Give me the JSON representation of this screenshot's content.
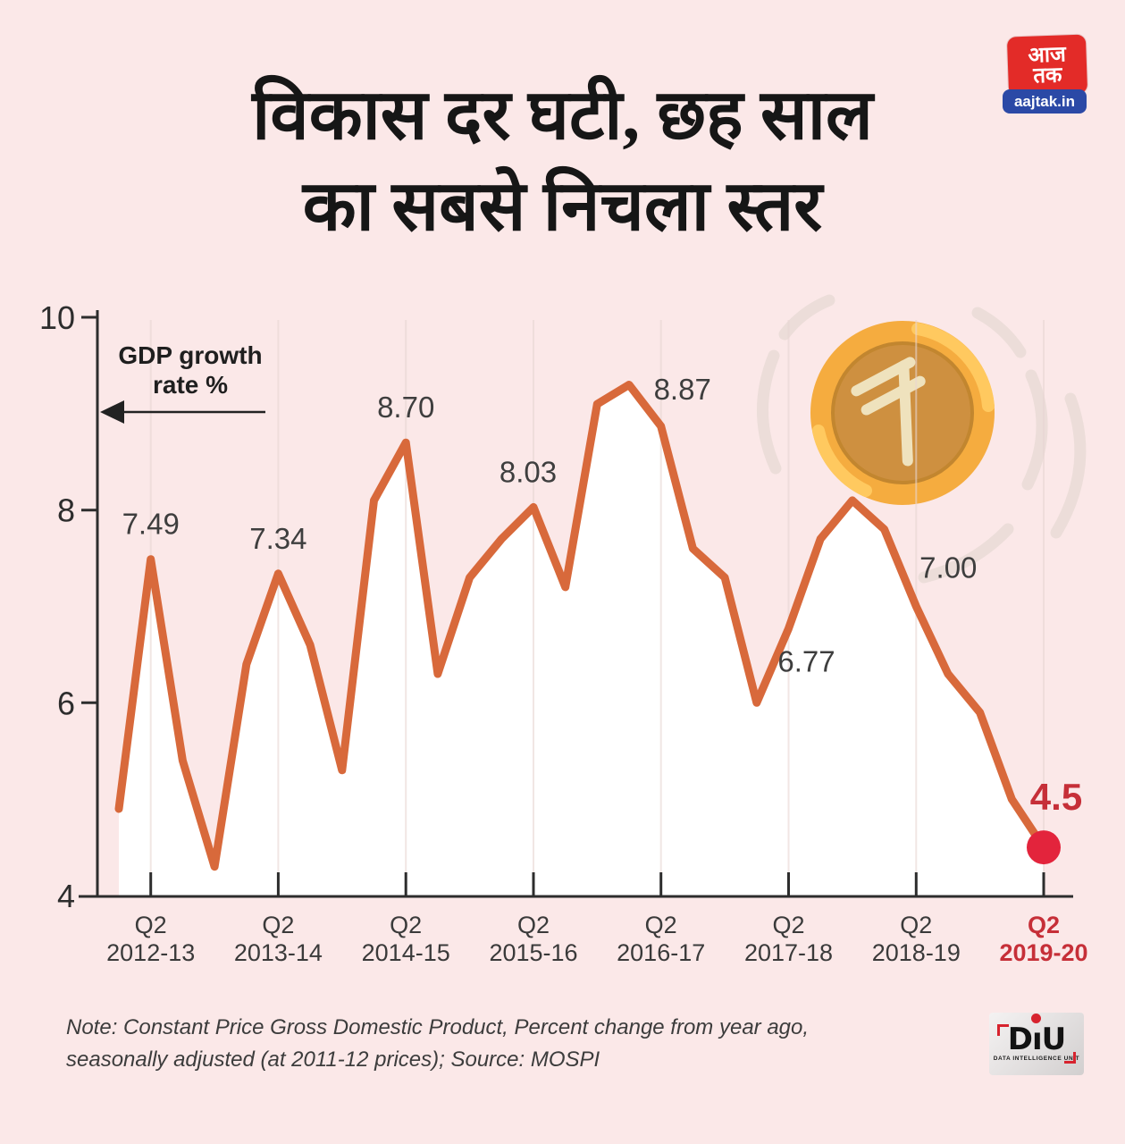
{
  "page": {
    "background": "#FBE8E8"
  },
  "title": {
    "line1": "विकास दर घटी, छह साल",
    "line2": "का सबसे निचला स्तर"
  },
  "logo": {
    "hindi_top": "आज",
    "hindi_bottom": "तक",
    "site": "aajtak.in",
    "red": "#E32B28",
    "blue": "#2B49A6"
  },
  "annotation": {
    "line1": "GDP growth",
    "line2": "rate %"
  },
  "chart_data": {
    "type": "line",
    "title": "",
    "xlabel": "",
    "ylabel": "GDP growth rate %",
    "ylim": [
      4,
      10
    ],
    "y_ticks": [
      10,
      8,
      6,
      4
    ],
    "grid": "vertical-at-Q2-ticks",
    "legend": "none",
    "line_color": "#D8693B",
    "fill_color": "#FFFFFF",
    "red_label_color": "#C62F38",
    "dot_color": "#E3243C",
    "x_tick_labels": [
      {
        "top": "Q2",
        "bottom": "2012-13",
        "highlight": false
      },
      {
        "top": "Q2",
        "bottom": "2013-14",
        "highlight": false
      },
      {
        "top": "Q2",
        "bottom": "2014-15",
        "highlight": false
      },
      {
        "top": "Q2",
        "bottom": "2015-16",
        "highlight": false
      },
      {
        "top": "Q2",
        "bottom": "2016-17",
        "highlight": false
      },
      {
        "top": "Q2",
        "bottom": "2017-18",
        "highlight": false
      },
      {
        "top": "Q2",
        "bottom": "2018-19",
        "highlight": false
      },
      {
        "top": "Q2",
        "bottom": "2019-20",
        "highlight": true
      }
    ],
    "series": [
      {
        "name": "GDP growth rate %",
        "points": [
          {
            "q": "Q1 2012-13",
            "v": 4.9
          },
          {
            "q": "Q2 2012-13",
            "v": 7.49,
            "label": "7.49",
            "dx": 0,
            "dy": -28
          },
          {
            "q": "Q3 2012-13",
            "v": 5.4
          },
          {
            "q": "Q4 2012-13",
            "v": 4.3
          },
          {
            "q": "Q1 2013-14",
            "v": 6.4
          },
          {
            "q": "Q2 2013-14",
            "v": 7.34,
            "label": "7.34",
            "dx": 0,
            "dy": -28
          },
          {
            "q": "Q3 2013-14",
            "v": 6.6
          },
          {
            "q": "Q4 2013-14",
            "v": 5.3
          },
          {
            "q": "Q1 2014-15",
            "v": 8.1
          },
          {
            "q": "Q2 2014-15",
            "v": 8.7,
            "label": "8.70",
            "dx": 0,
            "dy": -28
          },
          {
            "q": "Q3 2014-15",
            "v": 6.3
          },
          {
            "q": "Q4 2014-15",
            "v": 7.3
          },
          {
            "q": "Q1 2015-16",
            "v": 7.7
          },
          {
            "q": "Q2 2015-16",
            "v": 8.03,
            "label": "8.03",
            "dx": -6,
            "dy": -28
          },
          {
            "q": "Q3 2015-16",
            "v": 7.2
          },
          {
            "q": "Q4 2015-16",
            "v": 9.1
          },
          {
            "q": "Q1 2016-17",
            "v": 9.3
          },
          {
            "q": "Q2 2016-17",
            "v": 8.87,
            "label": "8.87",
            "dx": 24,
            "dy": -30
          },
          {
            "q": "Q3 2016-17",
            "v": 7.6
          },
          {
            "q": "Q4 2016-17",
            "v": 7.3
          },
          {
            "q": "Q1 2017-18",
            "v": 6.0
          },
          {
            "q": "Q2 2017-18",
            "v": 6.77,
            "label": "6.77",
            "dx": 20,
            "dy": 48
          },
          {
            "q": "Q3 2017-18",
            "v": 7.7
          },
          {
            "q": "Q4 2017-18",
            "v": 8.1
          },
          {
            "q": "Q1 2018-19",
            "v": 7.8
          },
          {
            "q": "Q2 2018-19",
            "v": 7.0,
            "label": "7.00",
            "dx": 36,
            "dy": -32
          },
          {
            "q": "Q3 2018-19",
            "v": 6.3
          },
          {
            "q": "Q4 2018-19",
            "v": 5.9
          },
          {
            "q": "Q1 2019-20",
            "v": 5.0
          },
          {
            "q": "Q2 2019-20",
            "v": 4.5,
            "label": "4.5",
            "dx": 14,
            "dy": -42,
            "highlight": true
          }
        ]
      }
    ]
  },
  "coin": {
    "symbol": "rupee",
    "outer_color": "#F5AC3F",
    "highlight_color": "#FFC95F",
    "inner_color": "#CE9040",
    "inner_edge_color": "#C2862F",
    "glyph_color": "#EFE2BD",
    "swoosh_color": "#ECDDD9"
  },
  "note": {
    "line1": "Note: Constant Price Gross Domestic Product, Percent change from year ago,",
    "line2": "seasonally adjusted (at 2011-12 prices); Source: MOSPI"
  },
  "diu": {
    "parts": [
      "D",
      "ı",
      "U"
    ],
    "tagline": "DATA INTELLIGENCE UNIT"
  }
}
